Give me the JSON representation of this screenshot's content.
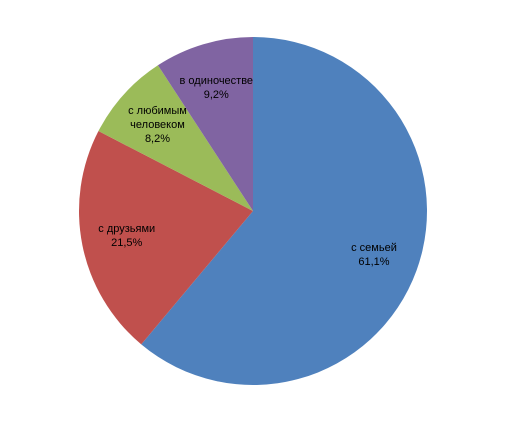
{
  "chart_data": {
    "type": "pie",
    "categories": [
      "с семьей",
      "с друзьями",
      "с любимым человеком",
      "в одиночестве"
    ],
    "values": [
      61.1,
      21.5,
      8.2,
      9.2
    ],
    "value_labels": [
      "61,1%",
      "21,5%",
      "8,2%",
      "9,2%"
    ],
    "colors": [
      "#4f81bd",
      "#c0504d",
      "#9bbb59",
      "#8064a2"
    ]
  }
}
